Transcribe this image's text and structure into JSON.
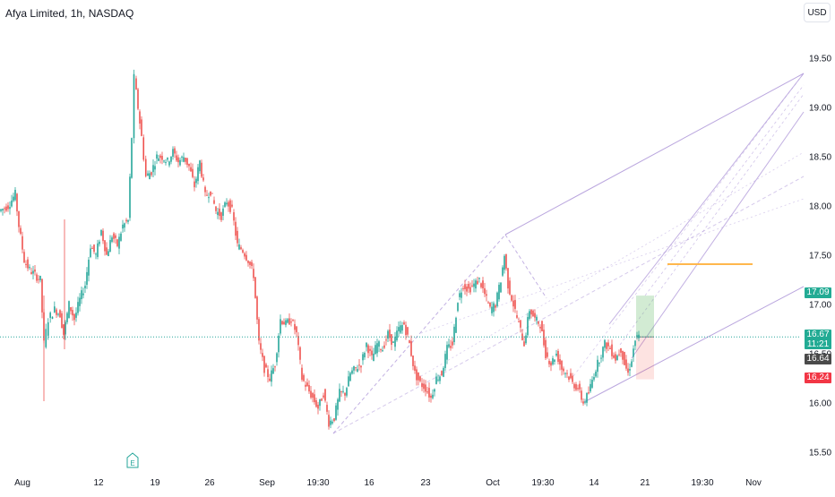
{
  "header": {
    "title": "Afya Limited, 1h, NASDAQ",
    "currency": "USD"
  },
  "colors": {
    "up": "#26a69a",
    "down": "#ef5350",
    "pitchfork": "#b39ddb",
    "fill_top": "#4caf50",
    "fill_bottom": "#f44336",
    "current": "#26a69a",
    "target": "#ffb74d",
    "stop": "#f23645",
    "prev": "#4a4a4a"
  },
  "badge": {
    "label": "E"
  },
  "price_tags": {
    "target": "17.09",
    "current": "16.67",
    "countdown": "11:21",
    "prev": "16.64",
    "stop": "16.24"
  },
  "chart_data": {
    "type": "candlestick",
    "title": "Afya Limited, 1h, NASDAQ",
    "currency": "USD",
    "ylim": [
      15.4,
      19.85
    ],
    "y_ticks": [
      "15.50",
      "16.00",
      "16.50",
      "17.00",
      "17.50",
      "18.00",
      "18.50",
      "19.00",
      "19.50"
    ],
    "x_ticks": [
      "Aug",
      "12",
      "19",
      "26",
      "Sep",
      "19:30",
      "16",
      "23",
      "Oct",
      "19:30",
      "14",
      "21",
      "19:30",
      "Nov"
    ],
    "last_price": 16.67,
    "prev_close": 16.64,
    "target_price": 17.09,
    "stop_price": 16.24,
    "close_path": [
      [
        0,
        17.95
      ],
      [
        10,
        18.0
      ],
      [
        18,
        18.12
      ],
      [
        22,
        17.8
      ],
      [
        28,
        17.45
      ],
      [
        34,
        17.35
      ],
      [
        40,
        17.3
      ],
      [
        46,
        17.25
      ],
      [
        50,
        16.6
      ],
      [
        55,
        16.85
      ],
      [
        62,
        16.95
      ],
      [
        68,
        16.9
      ],
      [
        72,
        16.7
      ],
      [
        78,
        17.0
      ],
      [
        84,
        16.85
      ],
      [
        90,
        17.05
      ],
      [
        96,
        17.2
      ],
      [
        102,
        17.6
      ],
      [
        108,
        17.5
      ],
      [
        114,
        17.75
      ],
      [
        120,
        17.5
      ],
      [
        126,
        17.7
      ],
      [
        132,
        17.6
      ],
      [
        138,
        17.8
      ],
      [
        144,
        17.85
      ],
      [
        148,
        18.7
      ],
      [
        151,
        19.3
      ],
      [
        155,
        19.0
      ],
      [
        159,
        18.7
      ],
      [
        164,
        18.3
      ],
      [
        170,
        18.35
      ],
      [
        176,
        18.5
      ],
      [
        182,
        18.5
      ],
      [
        188,
        18.45
      ],
      [
        194,
        18.55
      ],
      [
        200,
        18.45
      ],
      [
        206,
        18.5
      ],
      [
        212,
        18.4
      ],
      [
        218,
        18.2
      ],
      [
        224,
        18.45
      ],
      [
        230,
        18.1
      ],
      [
        236,
        18.15
      ],
      [
        242,
        17.95
      ],
      [
        248,
        17.9
      ],
      [
        254,
        18.05
      ],
      [
        260,
        17.95
      ],
      [
        266,
        17.6
      ],
      [
        272,
        17.55
      ],
      [
        278,
        17.45
      ],
      [
        284,
        17.3
      ],
      [
        290,
        16.6
      ],
      [
        296,
        16.35
      ],
      [
        302,
        16.25
      ],
      [
        308,
        16.4
      ],
      [
        314,
        16.85
      ],
      [
        320,
        16.8
      ],
      [
        326,
        16.85
      ],
      [
        332,
        16.7
      ],
      [
        338,
        16.25
      ],
      [
        344,
        16.15
      ],
      [
        350,
        16.05
      ],
      [
        356,
        15.95
      ],
      [
        362,
        16.1
      ],
      [
        368,
        15.8
      ],
      [
        374,
        15.85
      ],
      [
        380,
        16.1
      ],
      [
        386,
        16.1
      ],
      [
        392,
        16.3
      ],
      [
        398,
        16.35
      ],
      [
        404,
        16.4
      ],
      [
        410,
        16.6
      ],
      [
        416,
        16.45
      ],
      [
        422,
        16.6
      ],
      [
        428,
        16.55
      ],
      [
        434,
        16.7
      ],
      [
        440,
        16.6
      ],
      [
        446,
        16.75
      ],
      [
        452,
        16.8
      ],
      [
        458,
        16.6
      ],
      [
        464,
        16.3
      ],
      [
        470,
        16.2
      ],
      [
        476,
        16.15
      ],
      [
        482,
        16.05
      ],
      [
        488,
        16.25
      ],
      [
        494,
        16.3
      ],
      [
        500,
        16.55
      ],
      [
        506,
        16.6
      ],
      [
        512,
        17.05
      ],
      [
        518,
        17.2
      ],
      [
        524,
        17.15
      ],
      [
        530,
        17.2
      ],
      [
        536,
        17.25
      ],
      [
        542,
        17.1
      ],
      [
        548,
        16.95
      ],
      [
        554,
        17.0
      ],
      [
        560,
        17.25
      ],
      [
        564,
        17.5
      ],
      [
        568,
        17.2
      ],
      [
        574,
        17.0
      ],
      [
        580,
        16.8
      ],
      [
        586,
        16.6
      ],
      [
        592,
        16.95
      ],
      [
        598,
        16.85
      ],
      [
        604,
        16.8
      ],
      [
        610,
        16.5
      ],
      [
        616,
        16.4
      ],
      [
        622,
        16.5
      ],
      [
        628,
        16.35
      ],
      [
        634,
        16.3
      ],
      [
        640,
        16.2
      ],
      [
        646,
        16.15
      ],
      [
        652,
        16.0
      ],
      [
        658,
        16.1
      ],
      [
        664,
        16.3
      ],
      [
        670,
        16.45
      ],
      [
        676,
        16.6
      ],
      [
        682,
        16.55
      ],
      [
        688,
        16.45
      ],
      [
        694,
        16.55
      ],
      [
        698,
        16.4
      ],
      [
        702,
        16.3
      ],
      [
        706,
        16.45
      ],
      [
        710,
        16.64
      ],
      [
        714,
        16.67
      ]
    ]
  }
}
